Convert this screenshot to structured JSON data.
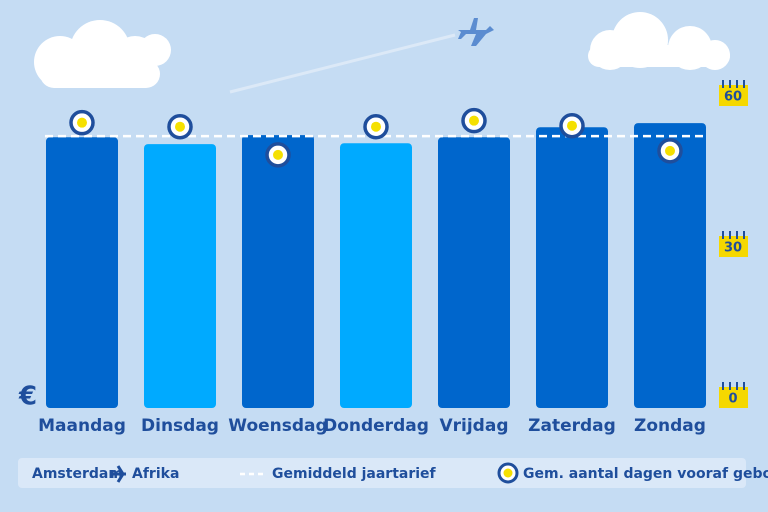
{
  "chart_data": {
    "type": "bar",
    "currency_label": "€",
    "route": {
      "origin": "Amsterdam",
      "destination": "Afrika"
    },
    "categories": [
      "Maandag",
      "Dinsdag",
      "Woensdag",
      "Donderdag",
      "Vrijdag",
      "Zaterdag",
      "Zondag"
    ],
    "series": [
      {
        "values": [
          99.6,
          97.1,
          100.4,
          97.4,
          99.6,
          103.3,
          104.8
        ],
        "colors": [
          "#0066cc",
          "#00aaff",
          "#0066cc",
          "#00aaff",
          "#0066cc",
          "#0066cc",
          "#0066cc"
        ]
      },
      {
        "name": "Gem. aantal dagen vooraf geboekt",
        "axis": "y2",
        "color": "#f5e000",
        "values": [
          54.5,
          53.7,
          48.1,
          53.7,
          54.9,
          53.9,
          48.9
        ]
      }
    ],
    "average": {
      "name": "Gemiddeld jaartarief",
      "value": 100
    },
    "ylim": [
      0,
      110
    ],
    "y2lim": [
      0,
      60
    ],
    "y2ticks": [
      0,
      30,
      60
    ]
  }
}
